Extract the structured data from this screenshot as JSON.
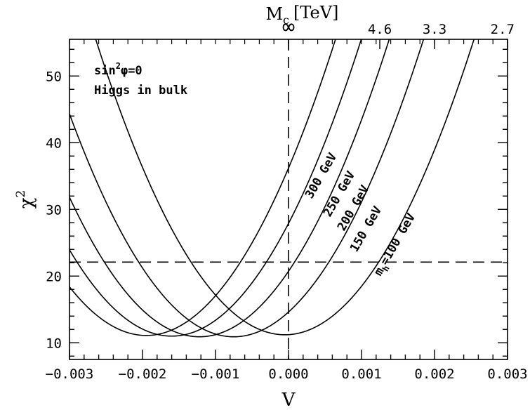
{
  "chart_data": {
    "type": "line",
    "title": "",
    "xlabel": "V",
    "ylabel": "χ",
    "ylabel_superscript": "2",
    "xlim": [
      -0.003,
      0.003
    ],
    "ylim": [
      7.5,
      55.5
    ],
    "x_ticks": [
      -0.003,
      -0.002,
      -0.001,
      0.0,
      0.001,
      0.002,
      0.003
    ],
    "x_tick_labels": [
      "−0.003",
      "−0.002",
      "−0.001",
      "0.000",
      "0.001",
      "0.002",
      "0.003"
    ],
    "y_ticks": [
      10,
      20,
      30,
      40,
      50
    ],
    "y_tick_labels": [
      "10",
      "20",
      "30",
      "40",
      "50"
    ],
    "top_axis": {
      "label": "M",
      "label_subscript": "c",
      "unit": "[TeV]",
      "ticks": [
        {
          "v": 0.0,
          "label": "∞"
        },
        {
          "v": 0.00125,
          "label": "4.6"
        },
        {
          "v": 0.002,
          "label": "3.3"
        },
        {
          "v": 0.003,
          "label": "2.7"
        }
      ]
    },
    "reference_lines": {
      "horizontal_y": 22.1,
      "vertical_x": 0.0
    },
    "series": [
      {
        "name": "300 GeV",
        "x_min": -0.00195,
        "y_min": 11.1,
        "curvature": 6600000.0
      },
      {
        "name": "250 GeV",
        "x_min": -0.0016,
        "y_min": 11.0,
        "curvature": 6600000.0
      },
      {
        "name": "200 GeV",
        "x_min": -0.00122,
        "y_min": 10.9,
        "curvature": 6600000.0
      },
      {
        "name": "150 GeV",
        "x_min": -0.00075,
        "y_min": 10.9,
        "curvature": 6600000.0
      },
      {
        "name": "m_h=100 GeV",
        "x_min": -5e-05,
        "y_min": 11.2,
        "curvature": 6600000.0
      }
    ],
    "annotations": [
      {
        "text": "sin",
        "sup": "2",
        "rest": "φ=0"
      },
      {
        "text": "Higgs in bulk"
      }
    ],
    "curve_labels": [
      "300 GeV",
      "250 GeV",
      "200 GeV",
      "150 GeV"
    ],
    "mh_label": {
      "prefix": "m",
      "sub": "h",
      "rest": "=100 GeV"
    }
  }
}
